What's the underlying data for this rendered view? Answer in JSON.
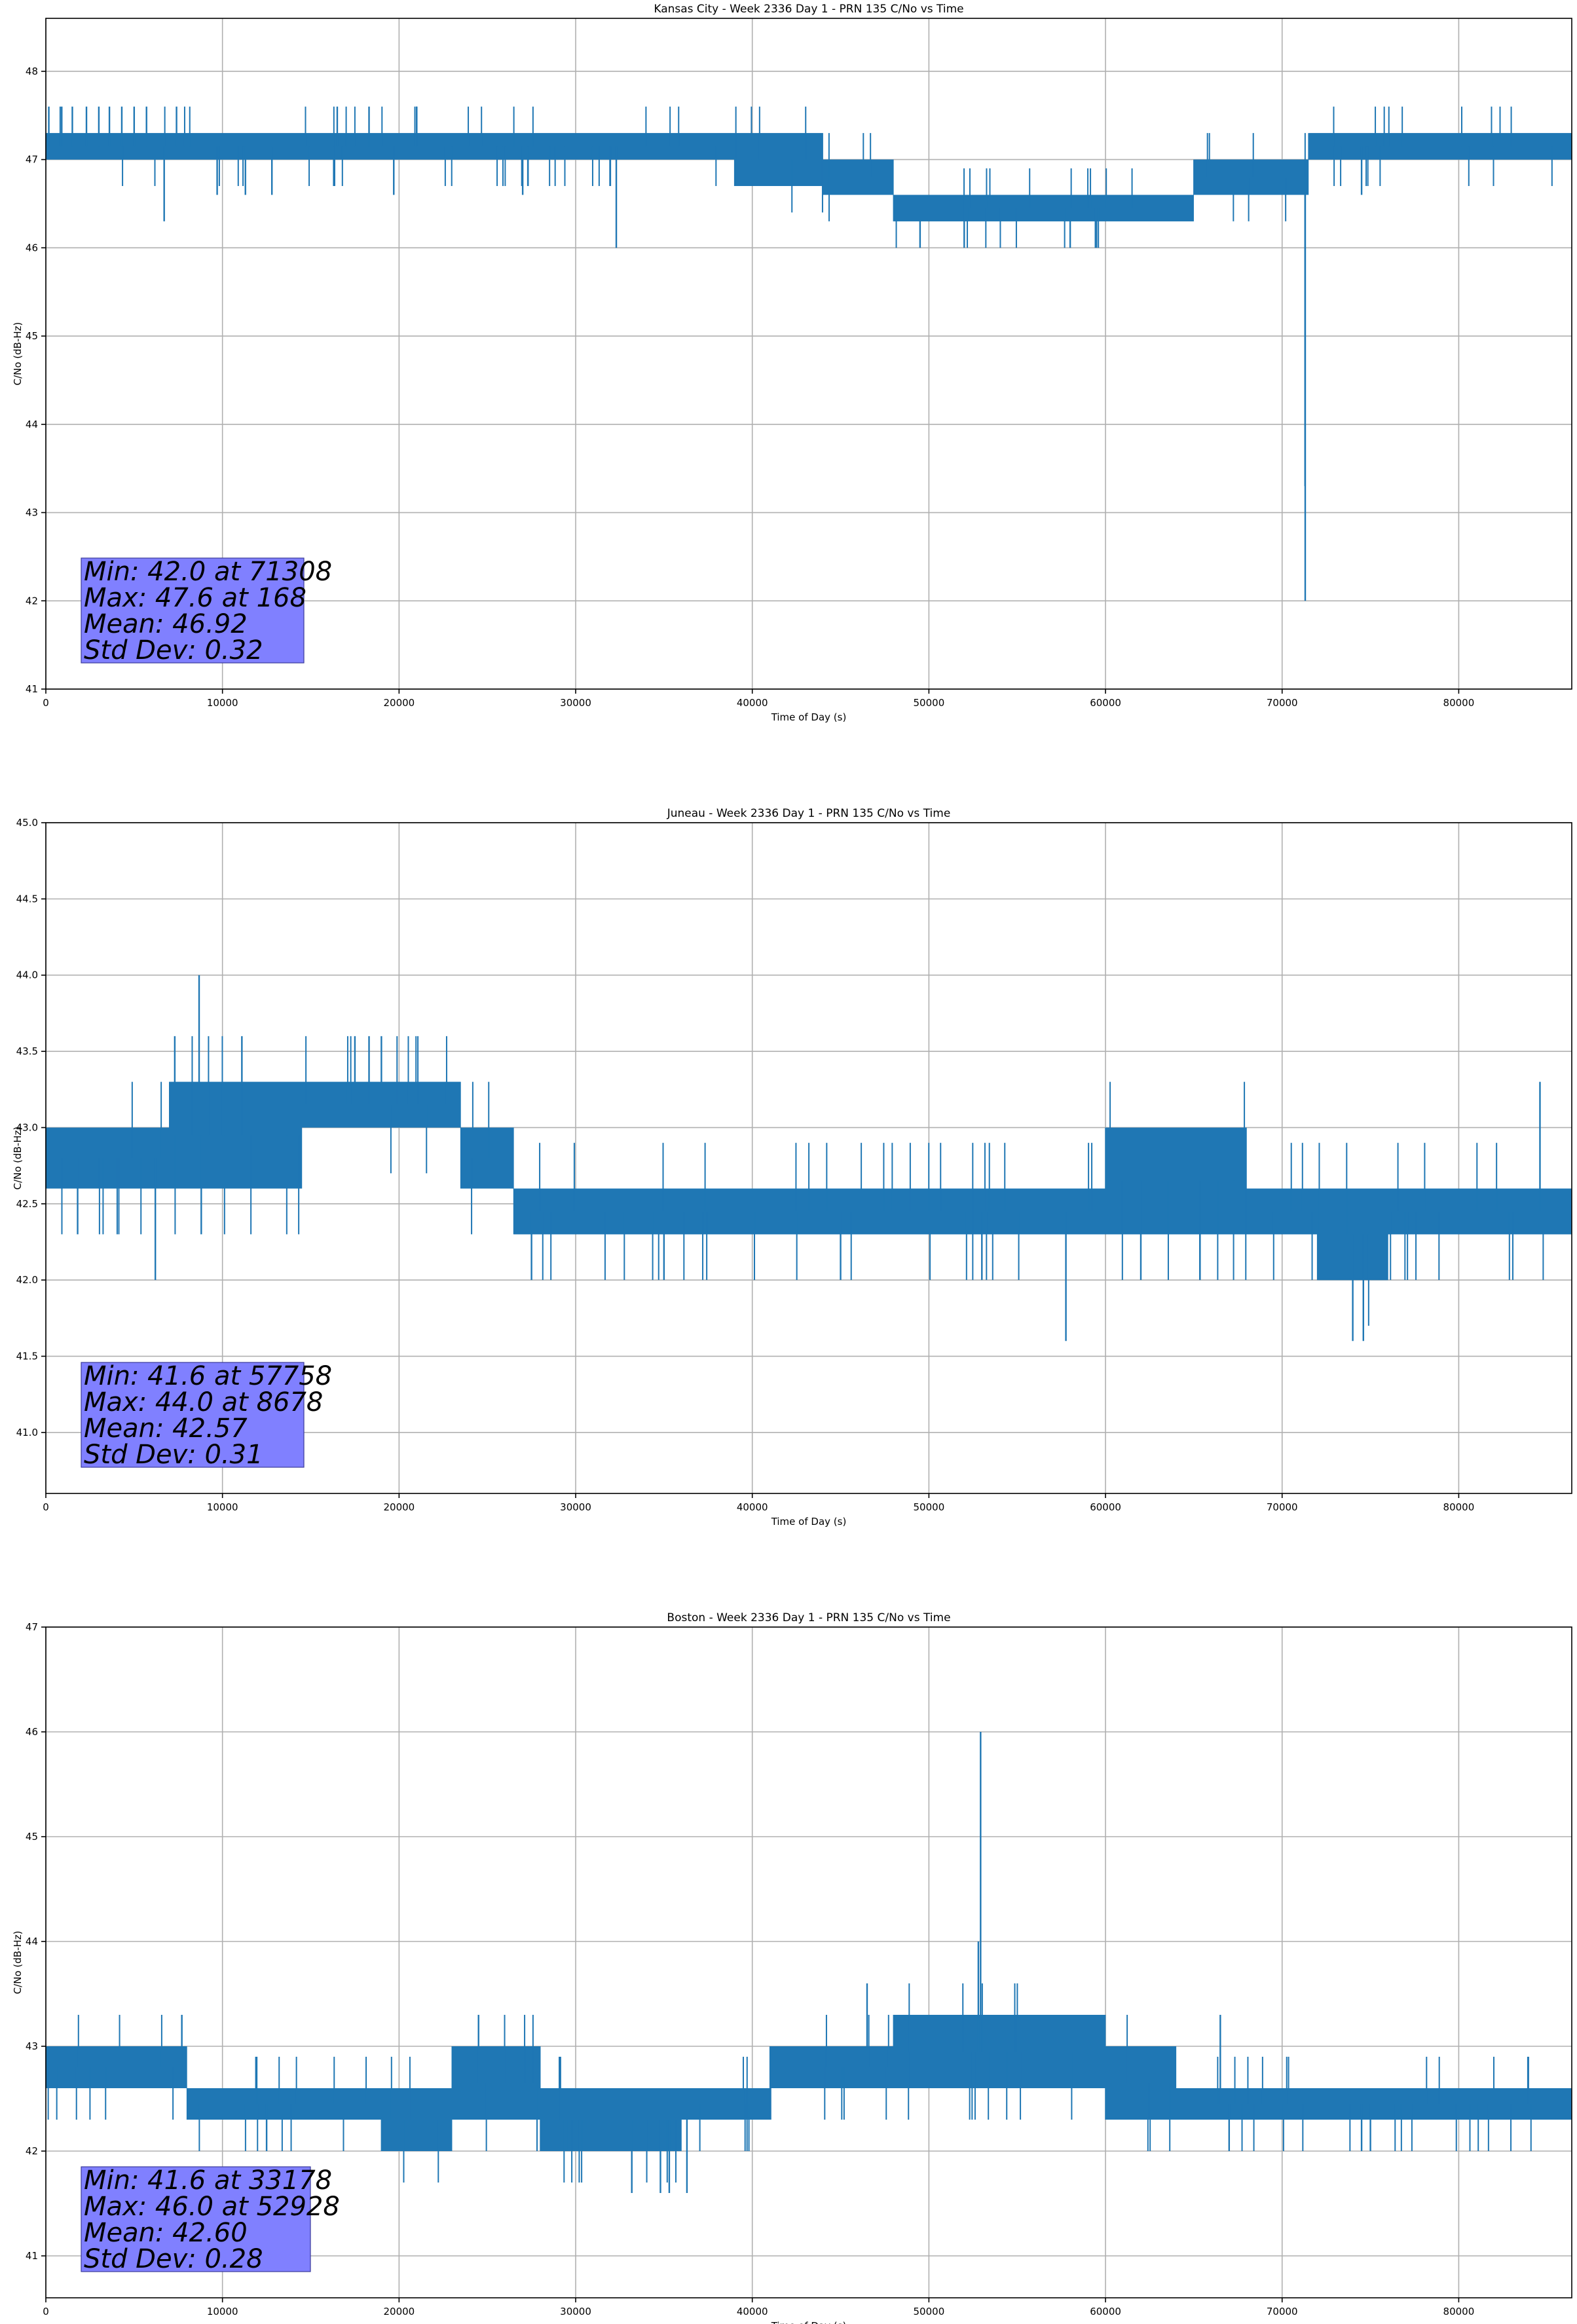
{
  "chart_data": [
    {
      "type": "line",
      "title": "Kansas City - Week 2336 Day 1 - PRN 135 C/No vs Time",
      "xlabel": "Time of Day (s)",
      "ylabel": "C/No (dB-Hz)",
      "xlim": [
        0,
        86400
      ],
      "ylim": [
        41,
        48.6
      ],
      "xticks": [
        0,
        10000,
        20000,
        30000,
        40000,
        50000,
        60000,
        70000,
        80000
      ],
      "yticks": [
        41,
        42,
        43,
        44,
        45,
        46,
        47,
        48
      ],
      "grid": true,
      "line_color": "#1f77b4",
      "segments": [
        {
          "x": [
            0,
            39000
          ],
          "low": 47.0,
          "high": 47.3
        },
        {
          "x": [
            39000,
            44000
          ],
          "low": 46.7,
          "high": 47.3
        },
        {
          "x": [
            44000,
            48000
          ],
          "low": 46.6,
          "high": 47.0
        },
        {
          "x": [
            48000,
            65000
          ],
          "low": 46.3,
          "high": 46.6
        },
        {
          "x": [
            65000,
            71500
          ],
          "low": 46.6,
          "high": 47.0
        },
        {
          "x": [
            71500,
            86400
          ],
          "low": 47.0,
          "high": 47.3
        }
      ],
      "spikes": [
        {
          "x": 168,
          "y": 47.6
        },
        {
          "x": 900,
          "y": 47.6
        },
        {
          "x": 1500,
          "y": 47.6
        },
        {
          "x": 2300,
          "y": 47.6
        },
        {
          "x": 3000,
          "y": 47.6
        },
        {
          "x": 3600,
          "y": 47.6
        },
        {
          "x": 4300,
          "y": 47.6
        },
        {
          "x": 5000,
          "y": 47.6
        },
        {
          "x": 5700,
          "y": 47.6
        },
        {
          "x": 6700,
          "y": 46.3
        },
        {
          "x": 7400,
          "y": 47.6
        },
        {
          "x": 9700,
          "y": 46.6
        },
        {
          "x": 11300,
          "y": 46.6
        },
        {
          "x": 12800,
          "y": 46.6
        },
        {
          "x": 16500,
          "y": 47.6
        },
        {
          "x": 18300,
          "y": 47.6
        },
        {
          "x": 19700,
          "y": 46.6
        },
        {
          "x": 21000,
          "y": 47.6
        },
        {
          "x": 27000,
          "y": 46.6
        },
        {
          "x": 32300,
          "y": 46.0
        },
        {
          "x": 49500,
          "y": 46.0
        },
        {
          "x": 52000,
          "y": 46.0
        },
        {
          "x": 58000,
          "y": 46.0
        },
        {
          "x": 71308,
          "y": 42.0
        },
        {
          "x": 71300,
          "y": 43.3
        },
        {
          "x": 74500,
          "y": 46.6
        }
      ],
      "stats": [
        "Min: 42.0 at 71308",
        "Max: 47.6 at 168",
        "Mean: 46.92",
        "Std Dev: 0.32"
      ]
    },
    {
      "type": "line",
      "title": "Juneau - Week 2336 Day 1 - PRN 135 C/No vs Time",
      "xlabel": "Time of Day (s)",
      "ylabel": "C/No (dB-Hz)",
      "xlim": [
        0,
        86400
      ],
      "ylim": [
        40.6,
        45.0
      ],
      "xticks": [
        0,
        10000,
        20000,
        30000,
        40000,
        50000,
        60000,
        70000,
        80000
      ],
      "yticks": [
        41.0,
        41.5,
        42.0,
        42.5,
        43.0,
        43.5,
        44.0,
        44.5,
        45.0
      ],
      "grid": true,
      "line_color": "#1f77b4",
      "segments": [
        {
          "x": [
            0,
            7000
          ],
          "low": 42.6,
          "high": 43.0
        },
        {
          "x": [
            7000,
            14500
          ],
          "low": 42.6,
          "high": 43.3
        },
        {
          "x": [
            14500,
            23500
          ],
          "low": 43.0,
          "high": 43.3
        },
        {
          "x": [
            23500,
            26500
          ],
          "low": 42.6,
          "high": 43.0
        },
        {
          "x": [
            26500,
            60000
          ],
          "low": 42.3,
          "high": 42.6
        },
        {
          "x": [
            60000,
            68000
          ],
          "low": 42.3,
          "high": 43.0
        },
        {
          "x": [
            68000,
            72000
          ],
          "low": 42.3,
          "high": 42.6
        },
        {
          "x": [
            72000,
            76000
          ],
          "low": 42.0,
          "high": 42.6
        },
        {
          "x": [
            76000,
            86400
          ],
          "low": 42.3,
          "high": 42.6
        }
      ],
      "spikes": [
        {
          "x": 1800,
          "y": 42.3
        },
        {
          "x": 6200,
          "y": 42.0
        },
        {
          "x": 7300,
          "y": 43.6
        },
        {
          "x": 8678,
          "y": 44.0
        },
        {
          "x": 8800,
          "y": 42.3
        },
        {
          "x": 11100,
          "y": 43.6
        },
        {
          "x": 17500,
          "y": 43.6
        },
        {
          "x": 18300,
          "y": 43.6
        },
        {
          "x": 19000,
          "y": 43.6
        },
        {
          "x": 27500,
          "y": 42.0
        },
        {
          "x": 35000,
          "y": 42.0
        },
        {
          "x": 45000,
          "y": 42.0
        },
        {
          "x": 53000,
          "y": 42.0
        },
        {
          "x": 57758,
          "y": 41.6
        },
        {
          "x": 62000,
          "y": 42.0
        },
        {
          "x": 74000,
          "y": 41.6
        },
        {
          "x": 74600,
          "y": 41.6
        },
        {
          "x": 84600,
          "y": 43.3
        }
      ],
      "stats": [
        "Min: 41.6 at 57758",
        "Max: 44.0 at 8678",
        "Mean: 42.57",
        "Std Dev: 0.31"
      ]
    },
    {
      "type": "line",
      "title": "Boston - Week 2336 Day 1 - PRN 135 C/No vs Time",
      "xlabel": "Time of Day (s)",
      "ylabel": "C/No (dB-Hz)",
      "xlim": [
        0,
        86400
      ],
      "ylim": [
        40.6,
        47.0
      ],
      "xticks": [
        0,
        10000,
        20000,
        30000,
        40000,
        50000,
        60000,
        70000,
        80000
      ],
      "yticks": [
        41,
        42,
        43,
        44,
        45,
        46,
        47
      ],
      "grid": true,
      "line_color": "#1f77b4",
      "segments": [
        {
          "x": [
            0,
            8000
          ],
          "low": 42.6,
          "high": 43.0
        },
        {
          "x": [
            8000,
            19000
          ],
          "low": 42.3,
          "high": 42.6
        },
        {
          "x": [
            19000,
            23000
          ],
          "low": 42.0,
          "high": 42.6
        },
        {
          "x": [
            23000,
            28000
          ],
          "low": 42.3,
          "high": 43.0
        },
        {
          "x": [
            28000,
            36000
          ],
          "low": 42.0,
          "high": 42.6
        },
        {
          "x": [
            36000,
            41000
          ],
          "low": 42.3,
          "high": 42.6
        },
        {
          "x": [
            41000,
            48000
          ],
          "low": 42.6,
          "high": 43.0
        },
        {
          "x": [
            48000,
            60000
          ],
          "low": 42.6,
          "high": 43.3
        },
        {
          "x": [
            60000,
            64000
          ],
          "low": 42.3,
          "high": 43.0
        },
        {
          "x": [
            64000,
            86400
          ],
          "low": 42.3,
          "high": 42.6
        }
      ],
      "spikes": [
        {
          "x": 7700,
          "y": 43.3
        },
        {
          "x": 12500,
          "y": 42.0
        },
        {
          "x": 24500,
          "y": 43.3
        },
        {
          "x": 29500,
          "y": 42.0
        },
        {
          "x": 33178,
          "y": 41.6
        },
        {
          "x": 34800,
          "y": 41.6
        },
        {
          "x": 35300,
          "y": 41.6
        },
        {
          "x": 36300,
          "y": 41.6
        },
        {
          "x": 46500,
          "y": 43.6
        },
        {
          "x": 52800,
          "y": 44.0
        },
        {
          "x": 52928,
          "y": 46.0
        },
        {
          "x": 66500,
          "y": 43.3
        },
        {
          "x": 67000,
          "y": 42.0
        },
        {
          "x": 74500,
          "y": 42.0
        },
        {
          "x": 75000,
          "y": 42.0
        }
      ],
      "stats": [
        "Min: 41.6 at 33178",
        "Max: 46.0 at 52928",
        "Mean: 42.60",
        "Std Dev: 0.28"
      ]
    }
  ]
}
